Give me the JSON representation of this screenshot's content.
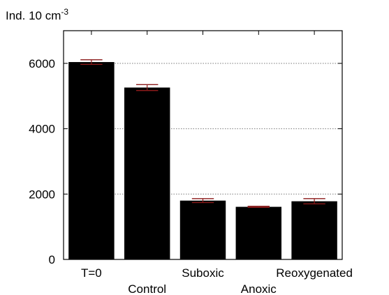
{
  "chart_data": {
    "type": "bar",
    "ylabel_main": "Ind. 10 cm",
    "ylabel_sup": "-3",
    "categories": [
      "T=0",
      "Control",
      "Suboxic",
      "Anoxic",
      "Reoxygenated"
    ],
    "values": [
      6040,
      5260,
      1800,
      1610,
      1780
    ],
    "errors": [
      70,
      90,
      60,
      15,
      80
    ],
    "ylim": [
      0,
      7000
    ],
    "yticks": [
      0,
      2000,
      4000,
      6000
    ],
    "grid": true,
    "colors": {
      "bar": "#000000",
      "error": "#8b1a1a",
      "grid": "#7a7a7a",
      "axis": "#000000"
    }
  }
}
